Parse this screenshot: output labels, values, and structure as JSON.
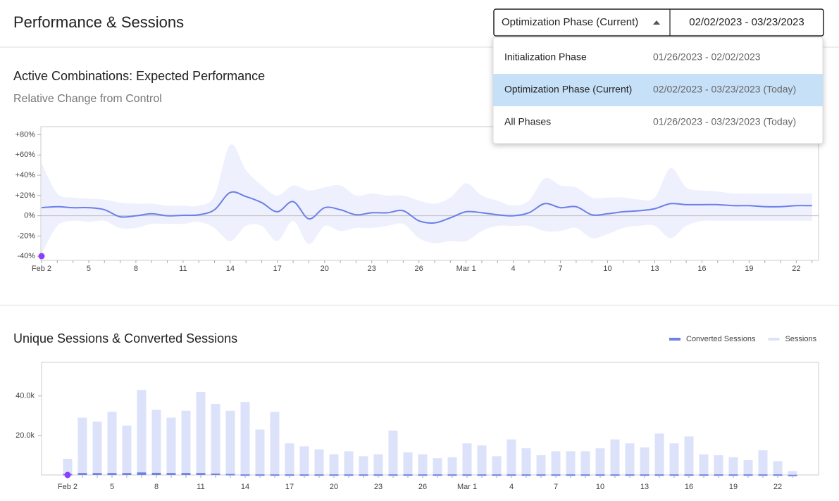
{
  "header": {
    "title": "Performance & Sessions"
  },
  "phase_select": {
    "selected": "Optimization Phase (Current)",
    "date_range": "02/02/2023 - 03/23/2023"
  },
  "phase_menu": {
    "active": 1,
    "items": [
      {
        "name": "Initialization Phase",
        "range": "01/26/2023 - 02/02/2023"
      },
      {
        "name": "Optimization Phase (Current)",
        "range": "02/02/2023 - 03/23/2023 (Today)"
      },
      {
        "name": "All Phases",
        "range": "01/26/2023 - 03/23/2023 (Today)"
      }
    ]
  },
  "chart_data": [
    {
      "type": "line",
      "title": "Active Combinations: Expected Performance",
      "subtitle": "Relative Change from Control",
      "categories": [
        "Feb 2",
        null,
        null,
        "5",
        null,
        null,
        "8",
        null,
        null,
        "11",
        null,
        null,
        "14",
        null,
        null,
        "17",
        null,
        null,
        "20",
        null,
        null,
        "23",
        null,
        null,
        "26",
        null,
        null,
        "Mar 1",
        null,
        null,
        "4",
        null,
        null,
        "7",
        null,
        null,
        "10",
        null,
        null,
        "13",
        null,
        null,
        "16",
        null,
        null,
        "19",
        null,
        null,
        "22",
        null
      ],
      "series": [
        {
          "color": "#6b7fe8",
          "band_color": "#eef0fd",
          "values": [
            8,
            9,
            8,
            8,
            6,
            -1,
            0,
            2,
            0,
            0.5,
            1,
            6,
            23,
            19,
            13,
            4,
            14,
            -3,
            8,
            6,
            1,
            3,
            3,
            5,
            -5,
            -7,
            -2,
            4,
            3,
            1,
            0,
            3,
            12,
            8,
            9,
            1,
            2,
            4,
            5,
            7,
            12,
            11,
            11,
            11,
            10,
            10,
            9,
            9,
            10,
            10
          ],
          "upper": [
            52,
            22,
            18,
            17,
            16,
            13,
            12,
            12,
            10,
            10,
            10,
            20,
            70,
            45,
            30,
            20,
            30,
            25,
            28,
            30,
            20,
            22,
            20,
            20,
            15,
            12,
            18,
            32,
            20,
            15,
            10,
            15,
            37,
            30,
            28,
            18,
            18,
            18,
            16,
            18,
            47,
            28,
            25,
            24,
            22,
            22,
            22,
            22,
            22,
            22
          ],
          "lower": [
            -38,
            -10,
            -5,
            -6,
            -5,
            -12,
            -12,
            -8,
            -8,
            -8,
            -6,
            -12,
            -25,
            -10,
            -10,
            -25,
            -5,
            -28,
            -10,
            -15,
            -12,
            -12,
            -10,
            -8,
            -22,
            -27,
            -25,
            -25,
            -15,
            -10,
            -10,
            -10,
            -15,
            -15,
            -12,
            -22,
            -18,
            -12,
            -10,
            -10,
            -22,
            -10,
            -5,
            -5,
            -5,
            -5,
            -5,
            -5,
            -5,
            -5
          ]
        }
      ],
      "ylim": [
        -44,
        88
      ],
      "yticks": [
        {
          "value": 80,
          "label": "+80%"
        },
        {
          "value": 60,
          "label": "+60%"
        },
        {
          "value": 40,
          "label": "+40%"
        },
        {
          "value": 20,
          "label": "+20%"
        },
        {
          "value": 0,
          "label": "0%"
        },
        {
          "value": -20,
          "label": "-20%"
        },
        {
          "value": -40,
          "label": "-40%"
        }
      ],
      "grid": false
    },
    {
      "type": "bar",
      "title": "Unique Sessions & Converted Sessions",
      "categories": [
        "Feb 2",
        null,
        null,
        "5",
        null,
        null,
        "8",
        null,
        null,
        "11",
        null,
        null,
        "14",
        null,
        null,
        "17",
        null,
        null,
        "20",
        null,
        null,
        "23",
        null,
        null,
        "26",
        null,
        null,
        "Mar 1",
        null,
        null,
        "4",
        null,
        null,
        "7",
        null,
        null,
        "10",
        null,
        null,
        "13",
        null,
        null,
        "16",
        null,
        null,
        "19",
        null,
        null,
        "22",
        null
      ],
      "series": [
        {
          "name": "Sessions",
          "color": "#dde2fb",
          "values": [
            8200,
            29000,
            27000,
            32000,
            25000,
            43000,
            33000,
            29000,
            32500,
            42000,
            36000,
            32500,
            37000,
            23000,
            32000,
            16000,
            14500,
            13000,
            10500,
            12000,
            9500,
            10500,
            22500,
            11500,
            10500,
            8500,
            9000,
            16000,
            15000,
            9500,
            18000,
            13500,
            10000,
            12000,
            12000,
            12000,
            13500,
            18000,
            16000,
            14000,
            21000,
            16000,
            19500,
            10500,
            10000,
            9000,
            7500,
            12500,
            7000,
            2000
          ]
        },
        {
          "name": "Converted Sessions",
          "color": "#7182e6",
          "values": [
            500,
            1000,
            1000,
            1000,
            1000,
            1300,
            1100,
            1000,
            1000,
            1000,
            700,
            500,
            300,
            300,
            300,
            300,
            300,
            300,
            300,
            300,
            300,
            300,
            300,
            300,
            300,
            300,
            300,
            300,
            300,
            300,
            300,
            300,
            300,
            300,
            300,
            300,
            300,
            300,
            300,
            300,
            300,
            300,
            300,
            300,
            300,
            300,
            300,
            300,
            300,
            100
          ]
        }
      ],
      "ylim": [
        0,
        57000
      ],
      "yticks": [
        {
          "value": 20000,
          "label": "20.0k"
        },
        {
          "value": 40000,
          "label": "40.0k"
        }
      ],
      "legend": "top-right",
      "grid": false
    }
  ]
}
